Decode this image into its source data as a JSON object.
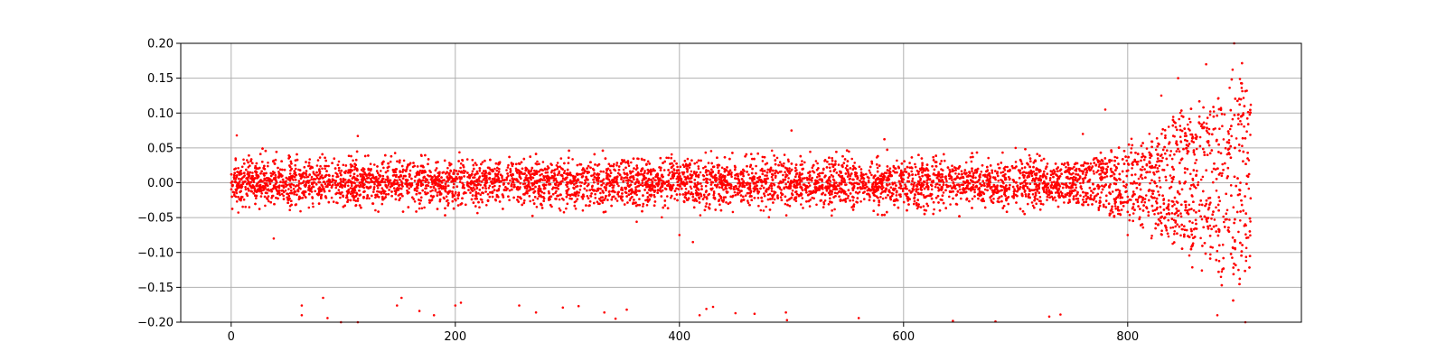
{
  "chart_data": {
    "type": "scatter",
    "title": "",
    "xlabel": "",
    "ylabel": "",
    "xlim": [
      -45,
      955
    ],
    "ylim": [
      -0.2,
      0.2
    ],
    "x_ticks": [
      0,
      200,
      400,
      600,
      800
    ],
    "x_tick_labels": [
      "0",
      "200",
      "400",
      "600",
      "800"
    ],
    "y_ticks": [
      -0.2,
      -0.15,
      -0.1,
      -0.05,
      0.0,
      0.05,
      0.1,
      0.15,
      0.2
    ],
    "y_tick_labels": [
      "−0.20",
      "−0.15",
      "−0.10",
      "−0.05",
      "0.00",
      "0.05",
      "0.10",
      "0.15",
      "0.20"
    ],
    "grid": true,
    "marker_color": "#ff0000",
    "series": [
      {
        "x_range": [
          0,
          910
        ],
        "description_points": [
          {
            "x": 0,
            "y": 0.0
          },
          {
            "x": 5,
            "y": 0.068
          },
          {
            "x": 38,
            "y": -0.08
          },
          {
            "x": 113,
            "y": 0.067
          },
          {
            "x": 350,
            "y": 0.03
          },
          {
            "x": 400,
            "y": -0.075
          },
          {
            "x": 412,
            "y": -0.085
          },
          {
            "x": 500,
            "y": 0.075
          },
          {
            "x": 700,
            "y": 0.05
          },
          {
            "x": 760,
            "y": 0.07
          },
          {
            "x": 780,
            "y": 0.105
          },
          {
            "x": 800,
            "y": -0.075
          },
          {
            "x": 830,
            "y": 0.125
          },
          {
            "x": 845,
            "y": 0.15
          },
          {
            "x": 870,
            "y": 0.17
          },
          {
            "x": 880,
            "y": -0.19
          },
          {
            "x": 895,
            "y": 0.2
          },
          {
            "x": 905,
            "y": -0.2
          }
        ],
        "base_band_halfwidth": 0.03,
        "envelope_growth_start": 740,
        "outliers_bottom": [
          [
            63,
            -0.176
          ],
          [
            63,
            -0.19
          ],
          [
            82,
            -0.165
          ],
          [
            86,
            -0.194
          ],
          [
            98,
            -0.2
          ],
          [
            113,
            -0.2
          ],
          [
            148,
            -0.176
          ],
          [
            152,
            -0.165
          ],
          [
            168,
            -0.184
          ],
          [
            181,
            -0.19
          ],
          [
            200,
            -0.176
          ],
          [
            205,
            -0.172
          ],
          [
            257,
            -0.176
          ],
          [
            272,
            -0.186
          ],
          [
            296,
            -0.179
          ],
          [
            310,
            -0.177
          ],
          [
            333,
            -0.186
          ],
          [
            343,
            -0.195
          ],
          [
            353,
            -0.182
          ],
          [
            418,
            -0.19
          ],
          [
            424,
            -0.181
          ],
          [
            430,
            -0.178
          ],
          [
            450,
            -0.187
          ],
          [
            467,
            -0.188
          ],
          [
            495,
            -0.186
          ],
          [
            496,
            -0.197
          ],
          [
            560,
            -0.194
          ],
          [
            644,
            -0.198
          ],
          [
            682,
            -0.199
          ],
          [
            730,
            -0.192
          ],
          [
            740,
            -0.189
          ]
        ]
      }
    ]
  }
}
